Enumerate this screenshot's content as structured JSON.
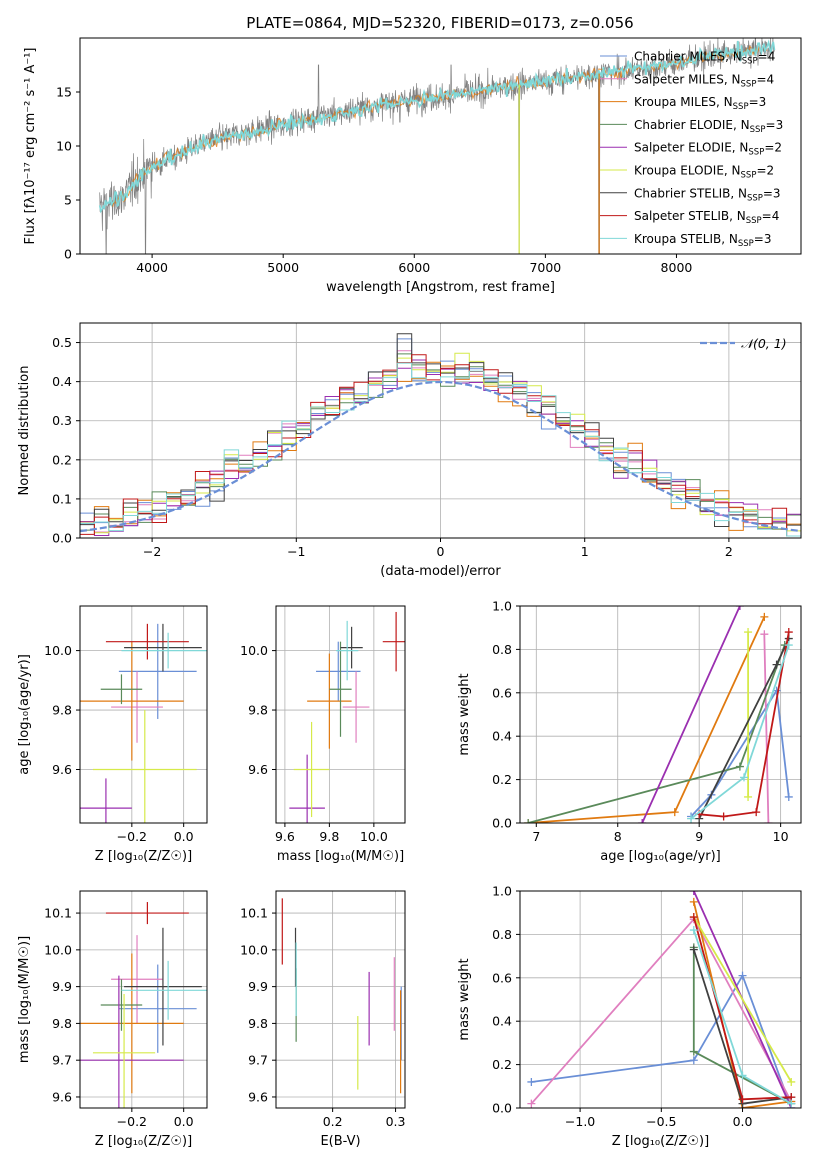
{
  "figure": {
    "title": "PLATE=0864, MJD=52320, FIBERID=0173, z=0.056"
  },
  "models": [
    {
      "name": "Chabrier MILES, N",
      "sub": "SSP",
      "suffix": "=4",
      "color": "#6a8fd6"
    },
    {
      "name": "Salpeter MILES, N",
      "sub": "SSP",
      "suffix": "=4",
      "color": "#e07fbf"
    },
    {
      "name": "Kroupa MILES, N",
      "sub": "SSP",
      "suffix": "=3",
      "color": "#e07a10"
    },
    {
      "name": "Chabrier ELODIE, N",
      "sub": "SSP",
      "suffix": "=3",
      "color": "#5a8a5a"
    },
    {
      "name": "Salpeter ELODIE, N",
      "sub": "SSP",
      "suffix": "=2",
      "color": "#9a2fb0"
    },
    {
      "name": "Kroupa ELODIE, N",
      "sub": "SSP",
      "suffix": "=2",
      "color": "#d6ea4a"
    },
    {
      "name": "Chabrier STELIB, N",
      "sub": "SSP",
      "suffix": "=3",
      "color": "#404040"
    },
    {
      "name": "Salpeter STELIB, N",
      "sub": "SSP",
      "suffix": "=4",
      "color": "#c01818"
    },
    {
      "name": "Kroupa STELIB, N",
      "sub": "SSP",
      "suffix": "=3",
      "color": "#80d8d8"
    }
  ],
  "chart_data": [
    {
      "id": "spectrum",
      "type": "line",
      "xlabel": "wavelength [Angstrom, rest frame]",
      "ylabel": "Flux [fλ10⁻¹⁷ erg cm⁻² s⁻¹ A⁻¹]",
      "xlim": [
        3450,
        8950
      ],
      "ylim": [
        0,
        20
      ],
      "xticks": [
        4000,
        5000,
        6000,
        7000,
        8000
      ],
      "yticks": [
        0,
        5,
        10,
        15
      ],
      "grid": false,
      "legend": "right",
      "data_color": "#808080",
      "model_color": "#80d8d8",
      "continuum": [
        [
          3600,
          4.2
        ],
        [
          3800,
          5.5
        ],
        [
          3900,
          7.2
        ],
        [
          4000,
          8.1
        ],
        [
          4200,
          9.2
        ],
        [
          4400,
          10.3
        ],
        [
          4600,
          10.9
        ],
        [
          4800,
          11.4
        ],
        [
          5000,
          12.0
        ],
        [
          5200,
          12.5
        ],
        [
          5400,
          12.9
        ],
        [
          5600,
          13.5
        ],
        [
          5800,
          13.9
        ],
        [
          6000,
          14.3
        ],
        [
          6200,
          14.6
        ],
        [
          6400,
          14.9
        ],
        [
          6600,
          15.3
        ],
        [
          6800,
          15.7
        ],
        [
          7000,
          16.0
        ],
        [
          7200,
          16.3
        ],
        [
          7400,
          16.7
        ],
        [
          7600,
          17.0
        ],
        [
          7800,
          17.3
        ],
        [
          8000,
          17.7
        ],
        [
          8200,
          18.2
        ],
        [
          8400,
          18.6
        ],
        [
          8600,
          18.9
        ],
        [
          8750,
          19.2
        ]
      ],
      "dips": [
        [
          3650,
          0
        ],
        [
          3950,
          0
        ],
        [
          5270,
          17.5
        ],
        [
          5890,
          12.2
        ],
        [
          6280,
          17.5
        ],
        [
          6800,
          0
        ],
        [
          7410,
          0
        ]
      ]
    },
    {
      "id": "residuals",
      "type": "bar",
      "xlabel": "(data-model)/error",
      "ylabel": "Normed distribution",
      "xlim": [
        -2.5,
        2.5
      ],
      "ylim": [
        0,
        0.55
      ],
      "xticks": [
        -2,
        -1,
        0,
        1,
        2
      ],
      "yticks": [
        0.0,
        0.1,
        0.2,
        0.3,
        0.4,
        0.5
      ],
      "grid": true,
      "legend": "top-right",
      "legend_label": "𝒩(0, 1)",
      "legend_color": "#6a8fd6",
      "bin_width": 0.1
    },
    {
      "id": "z-age",
      "type": "scatter",
      "xlabel": "Z [log₁₀(Z/Z☉)]",
      "ylabel": "age  [log₁₀(age/yr)]",
      "xlim": [
        -0.4,
        0.09
      ],
      "ylim": [
        9.42,
        10.15
      ],
      "xticks": [
        -0.2,
        0.0
      ],
      "yticks": [
        9.6,
        9.8,
        10.0
      ],
      "grid": true,
      "points": [
        {
          "x": -0.1,
          "y": 9.93,
          "xerr": 0.15,
          "yerr": 0.16
        },
        {
          "x": -0.18,
          "y": 9.81,
          "xerr": 0.1,
          "yerr": 0.12
        },
        {
          "x": -0.2,
          "y": 9.83,
          "xerr": 0.2,
          "yerr": 0.2
        },
        {
          "x": -0.24,
          "y": 9.87,
          "xerr": 0.08,
          "yerr": 0.05
        },
        {
          "x": -0.3,
          "y": 9.47,
          "xerr": 0.1,
          "yerr": 0.1
        },
        {
          "x": -0.15,
          "y": 9.6,
          "xerr": 0.2,
          "yerr": 0.2
        },
        {
          "x": -0.08,
          "y": 10.01,
          "xerr": 0.15,
          "yerr": 0.08
        },
        {
          "x": -0.14,
          "y": 10.03,
          "xerr": 0.16,
          "yerr": 0.06
        },
        {
          "x": -0.06,
          "y": 10.0,
          "xerr": 0.18,
          "yerr": 0.06
        }
      ]
    },
    {
      "id": "mass-age",
      "type": "scatter",
      "xlabel": "mass [log₁₀(M/M☉)]",
      "ylabel": "",
      "xlim": [
        9.56,
        10.14
      ],
      "ylim": [
        9.42,
        10.15
      ],
      "xticks": [
        9.6,
        9.8,
        10.0
      ],
      "yticks": [
        9.6,
        9.8,
        10.0
      ],
      "grid": true,
      "points": [
        {
          "x": 9.84,
          "y": 9.93,
          "xerr": 0.1,
          "yerr": 0.1
        },
        {
          "x": 9.92,
          "y": 9.81,
          "xerr": 0.06,
          "yerr": 0.12
        },
        {
          "x": 9.8,
          "y": 9.83,
          "xerr": 0.1,
          "yerr": 0.16
        },
        {
          "x": 9.85,
          "y": 9.87,
          "xerr": 0.05,
          "yerr": 0.16
        },
        {
          "x": 9.7,
          "y": 9.47,
          "xerr": 0.08,
          "yerr": 0.18
        },
        {
          "x": 9.72,
          "y": 9.6,
          "xerr": 0.08,
          "yerr": 0.16
        },
        {
          "x": 9.9,
          "y": 10.01,
          "xerr": 0.05,
          "yerr": 0.07
        },
        {
          "x": 10.1,
          "y": 10.03,
          "xerr": 0.06,
          "yerr": 0.1
        },
        {
          "x": 9.88,
          "y": 10.0,
          "xerr": 0.05,
          "yerr": 0.1
        }
      ]
    },
    {
      "id": "age-weight",
      "type": "line",
      "xlabel": "age  [log₁₀(age/yr)]",
      "ylabel": "mass weight",
      "xlim": [
        6.8,
        10.25
      ],
      "ylim": [
        0,
        1.0
      ],
      "xticks": [
        7,
        8,
        9,
        10
      ],
      "yticks": [
        0.0,
        0.2,
        0.4,
        0.6,
        0.8,
        1.0
      ],
      "grid": true,
      "series": [
        [
          [
            8.9,
            0.03
          ],
          [
            9.15,
            0.13
          ],
          [
            9.95,
            0.61
          ],
          [
            10.1,
            0.12
          ]
        ],
        [
          [
            9.8,
            0.87
          ],
          [
            9.85,
            0.0
          ]
        ],
        [
          [
            6.9,
            0.0
          ],
          [
            8.7,
            0.05
          ],
          [
            9.8,
            0.95
          ]
        ],
        [
          [
            6.9,
            0.0
          ],
          [
            9.5,
            0.26
          ],
          [
            10.05,
            0.82
          ]
        ],
        [
          [
            8.3,
            0.0
          ],
          [
            9.5,
            1.0
          ]
        ],
        [
          [
            9.6,
            0.88
          ],
          [
            9.6,
            0.12
          ]
        ],
        [
          [
            9.0,
            0.02
          ],
          [
            9.95,
            0.73
          ],
          [
            10.1,
            0.85
          ]
        ],
        [
          [
            9.0,
            0.04
          ],
          [
            9.3,
            0.03
          ],
          [
            9.7,
            0.05
          ],
          [
            10.1,
            0.88
          ]
        ],
        [
          [
            8.9,
            0.02
          ],
          [
            9.55,
            0.21
          ],
          [
            10.1,
            0.82
          ]
        ]
      ]
    },
    {
      "id": "z-mass",
      "type": "scatter",
      "xlabel": "Z [log₁₀(Z/Z☉)]",
      "ylabel": "mass [log₁₀(M/M☉)]",
      "xlim": [
        -0.4,
        0.09
      ],
      "ylim": [
        9.57,
        10.16
      ],
      "xticks": [
        -0.2,
        0.0
      ],
      "yticks": [
        9.6,
        9.7,
        9.8,
        9.9,
        10.0,
        10.1
      ],
      "grid": true,
      "points": [
        {
          "x": -0.1,
          "y": 9.84,
          "xerr": 0.15,
          "yerr": 0.12
        },
        {
          "x": -0.18,
          "y": 9.92,
          "xerr": 0.1,
          "yerr": 0.12
        },
        {
          "x": -0.2,
          "y": 9.8,
          "xerr": 0.2,
          "yerr": 0.19
        },
        {
          "x": -0.24,
          "y": 9.85,
          "xerr": 0.08,
          "yerr": 0.07
        },
        {
          "x": -0.25,
          "y": 9.7,
          "xerr": 0.25,
          "yerr": 0.23
        },
        {
          "x": -0.23,
          "y": 9.72,
          "xerr": 0.12,
          "yerr": 0.16
        },
        {
          "x": -0.08,
          "y": 9.9,
          "xerr": 0.15,
          "yerr": 0.16
        },
        {
          "x": -0.14,
          "y": 10.1,
          "xerr": 0.16,
          "yerr": 0.03
        },
        {
          "x": -0.06,
          "y": 9.89,
          "xerr": 0.18,
          "yerr": 0.08
        }
      ]
    },
    {
      "id": "ebv-mass",
      "type": "scatter",
      "xlabel": "E(B-V)",
      "ylabel": "",
      "xlim": [
        0.11,
        0.315
      ],
      "ylim": [
        9.57,
        10.16
      ],
      "xticks": [
        0.2,
        0.3
      ],
      "yticks": [
        9.6,
        9.7,
        9.8,
        9.9,
        10.0,
        10.1
      ],
      "grid": true,
      "points": [
        {
          "x": 0.309,
          "y": 9.8,
          "xerr": 0,
          "yerr": 0.1
        },
        {
          "x": 0.298,
          "y": 9.88,
          "xerr": 0,
          "yerr": 0.1
        },
        {
          "x": 0.308,
          "y": 9.75,
          "xerr": 0,
          "yerr": 0.14
        },
        {
          "x": 0.142,
          "y": 9.85,
          "xerr": 0,
          "yerr": 0.1
        },
        {
          "x": 0.258,
          "y": 9.84,
          "xerr": 0,
          "yerr": 0.1
        },
        {
          "x": 0.24,
          "y": 9.72,
          "xerr": 0,
          "yerr": 0.1
        },
        {
          "x": 0.141,
          "y": 9.98,
          "xerr": 0,
          "yerr": 0.08
        },
        {
          "x": 0.12,
          "y": 10.05,
          "xerr": 0,
          "yerr": 0.09
        },
        {
          "x": 0.142,
          "y": 9.92,
          "xerr": 0,
          "yerr": 0.1
        }
      ]
    },
    {
      "id": "z-weight",
      "type": "line",
      "xlabel": "Z [log₁₀(Z/Z☉)]",
      "ylabel": "mass weight",
      "xlim": [
        -1.37,
        0.36
      ],
      "ylim": [
        0,
        1.0
      ],
      "xticks": [
        -1.0,
        -0.5,
        0.0
      ],
      "yticks": [
        0.0,
        0.2,
        0.4,
        0.6,
        0.8,
        1.0
      ],
      "grid": true,
      "series": [
        [
          [
            -1.3,
            0.12
          ],
          [
            -0.3,
            0.22
          ],
          [
            0.0,
            0.61
          ],
          [
            0.3,
            0.0
          ]
        ],
        [
          [
            -1.3,
            0.02
          ],
          [
            -0.3,
            0.87
          ],
          [
            0.3,
            0.03
          ]
        ],
        [
          [
            -0.3,
            0.95
          ],
          [
            0.0,
            0.0
          ],
          [
            0.3,
            0.03
          ]
        ],
        [
          [
            -0.3,
            0.74
          ],
          [
            -0.3,
            0.26
          ],
          [
            0.3,
            0.02
          ]
        ],
        [
          [
            -0.3,
            1.0
          ],
          [
            0.3,
            0.0
          ]
        ],
        [
          [
            -0.3,
            0.88
          ],
          [
            0.3,
            0.12
          ]
        ],
        [
          [
            -0.3,
            0.73
          ],
          [
            0.0,
            0.02
          ],
          [
            0.3,
            0.05
          ]
        ],
        [
          [
            -0.3,
            0.88
          ],
          [
            0.0,
            0.04
          ],
          [
            0.3,
            0.05
          ]
        ],
        [
          [
            -0.3,
            0.82
          ],
          [
            0.0,
            0.15
          ],
          [
            0.3,
            0.02
          ]
        ]
      ]
    }
  ]
}
